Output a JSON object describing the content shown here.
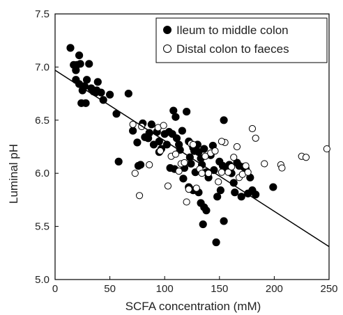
{
  "chart_data": {
    "type": "scatter",
    "xlabel": "SCFA concentration (mM)",
    "ylabel": "Luminal pH",
    "xlim": [
      0,
      250
    ],
    "ylim": [
      5.0,
      7.5
    ],
    "xticks": [
      "0",
      "50",
      "100",
      "150",
      "200",
      "250"
    ],
    "yticks": [
      "5.0",
      "5.5",
      "6.0",
      "6.5",
      "7.0",
      "7.5"
    ],
    "grid": false,
    "legend_position": "top-right",
    "series": [
      {
        "name": "Ileum to middle colon",
        "marker": "filled-circle",
        "color": "#000000",
        "points": [
          [
            14,
            7.18
          ],
          [
            17,
            7.02
          ],
          [
            19,
            6.97
          ],
          [
            20,
            7.02
          ],
          [
            22,
            7.11
          ],
          [
            23,
            7.03
          ],
          [
            19,
            6.88
          ],
          [
            22,
            6.84
          ],
          [
            25,
            6.78
          ],
          [
            27,
            6.82
          ],
          [
            29,
            6.88
          ],
          [
            31,
            7.03
          ],
          [
            33,
            6.8
          ],
          [
            35,
            6.77
          ],
          [
            37,
            6.76
          ],
          [
            38,
            6.78
          ],
          [
            39,
            6.86
          ],
          [
            42,
            6.76
          ],
          [
            44,
            6.69
          ],
          [
            24,
            6.66
          ],
          [
            28,
            6.66
          ],
          [
            50,
            6.74
          ],
          [
            56,
            6.56
          ],
          [
            67,
            6.75
          ],
          [
            58,
            6.11
          ],
          [
            71,
            6.4
          ],
          [
            75,
            6.29
          ],
          [
            76,
            6.07
          ],
          [
            78,
            6.08
          ],
          [
            80,
            6.47
          ],
          [
            82,
            6.34
          ],
          [
            85,
            6.33
          ],
          [
            86,
            6.38
          ],
          [
            88,
            6.46
          ],
          [
            90,
            6.27
          ],
          [
            93,
            6.39
          ],
          [
            95,
            6.3
          ],
          [
            97,
            6.23
          ],
          [
            100,
            6.37
          ],
          [
            102,
            6.27
          ],
          [
            104,
            6.39
          ],
          [
            105,
            6.05
          ],
          [
            107,
            6.37
          ],
          [
            108,
            6.59
          ],
          [
            110,
            6.53
          ],
          [
            111,
            6.33
          ],
          [
            113,
            6.27
          ],
          [
            114,
            6.22
          ],
          [
            116,
            6.4
          ],
          [
            118,
            6.05
          ],
          [
            120,
            6.58
          ],
          [
            122,
            6.3
          ],
          [
            123,
            6.15
          ],
          [
            124,
            6.09
          ],
          [
            125,
            6.27
          ],
          [
            126,
            6.24
          ],
          [
            127,
            6.21
          ],
          [
            128,
            6.01
          ],
          [
            130,
            6.27
          ],
          [
            131,
            6.2
          ],
          [
            133,
            6.14
          ],
          [
            134,
            6.08
          ],
          [
            136,
            6.23
          ],
          [
            138,
            6.01
          ],
          [
            140,
            5.96
          ],
          [
            142,
            6.17
          ],
          [
            144,
            6.26
          ],
          [
            145,
            6.03
          ],
          [
            148,
            5.78
          ],
          [
            150,
            6.11
          ],
          [
            151,
            5.84
          ],
          [
            153,
            6.07
          ],
          [
            154,
            6.5
          ],
          [
            156,
            6.05
          ],
          [
            159,
            6.08
          ],
          [
            161,
            6.0
          ],
          [
            163,
            5.91
          ],
          [
            164,
            5.82
          ],
          [
            166,
            6.1
          ],
          [
            168,
            6.07
          ],
          [
            170,
            5.78
          ],
          [
            172,
            6.06
          ],
          [
            174,
            6.04
          ],
          [
            176,
            5.81
          ],
          [
            178,
            5.96
          ],
          [
            180,
            5.84
          ],
          [
            183,
            5.8
          ],
          [
            199,
            5.87
          ],
          [
            122,
            5.87
          ],
          [
            126,
            5.84
          ],
          [
            131,
            5.82
          ],
          [
            133,
            5.72
          ],
          [
            135,
            5.52
          ],
          [
            136,
            5.68
          ],
          [
            138,
            5.65
          ],
          [
            147,
            5.35
          ],
          [
            154,
            5.55
          ],
          [
            117,
            5.95
          ],
          [
            109,
            6.04
          ],
          [
            95,
            6.2
          ]
        ]
      },
      {
        "name": "Distal colon to faeces",
        "marker": "open-circle",
        "color": "#000000",
        "points": [
          [
            71,
            6.46
          ],
          [
            73,
            6.0
          ],
          [
            77,
            5.79
          ],
          [
            79,
            6.44
          ],
          [
            86,
            6.08
          ],
          [
            94,
            6.43
          ],
          [
            96,
            6.21
          ],
          [
            103,
            5.88
          ],
          [
            106,
            6.16
          ],
          [
            110,
            6.18
          ],
          [
            115,
            6.09
          ],
          [
            118,
            6.1
          ],
          [
            120,
            5.73
          ],
          [
            122,
            5.85
          ],
          [
            124,
            6.28
          ],
          [
            126,
            6.27
          ],
          [
            129,
            5.86
          ],
          [
            132,
            6.04
          ],
          [
            134,
            6.0
          ],
          [
            137,
            6.16
          ],
          [
            142,
            6.19
          ],
          [
            146,
            6.21
          ],
          [
            149,
            5.92
          ],
          [
            152,
            6.01
          ],
          [
            155,
            6.29
          ],
          [
            158,
            6.01
          ],
          [
            161,
            6.06
          ],
          [
            163,
            6.15
          ],
          [
            166,
            6.25
          ],
          [
            168,
            5.96
          ],
          [
            171,
            5.99
          ],
          [
            174,
            6.07
          ],
          [
            176,
            6.01
          ],
          [
            180,
            6.42
          ],
          [
            183,
            6.33
          ],
          [
            191,
            6.09
          ],
          [
            206,
            6.08
          ],
          [
            207,
            6.05
          ],
          [
            225,
            6.16
          ],
          [
            229,
            6.15
          ],
          [
            248,
            6.23
          ],
          [
            140,
            6.0
          ],
          [
            152,
            6.3
          ],
          [
            113,
            6.02
          ],
          [
            99,
            6.45
          ]
        ]
      }
    ],
    "trendline": {
      "x": [
        0,
        250
      ],
      "y": [
        6.97,
        5.31
      ]
    }
  }
}
